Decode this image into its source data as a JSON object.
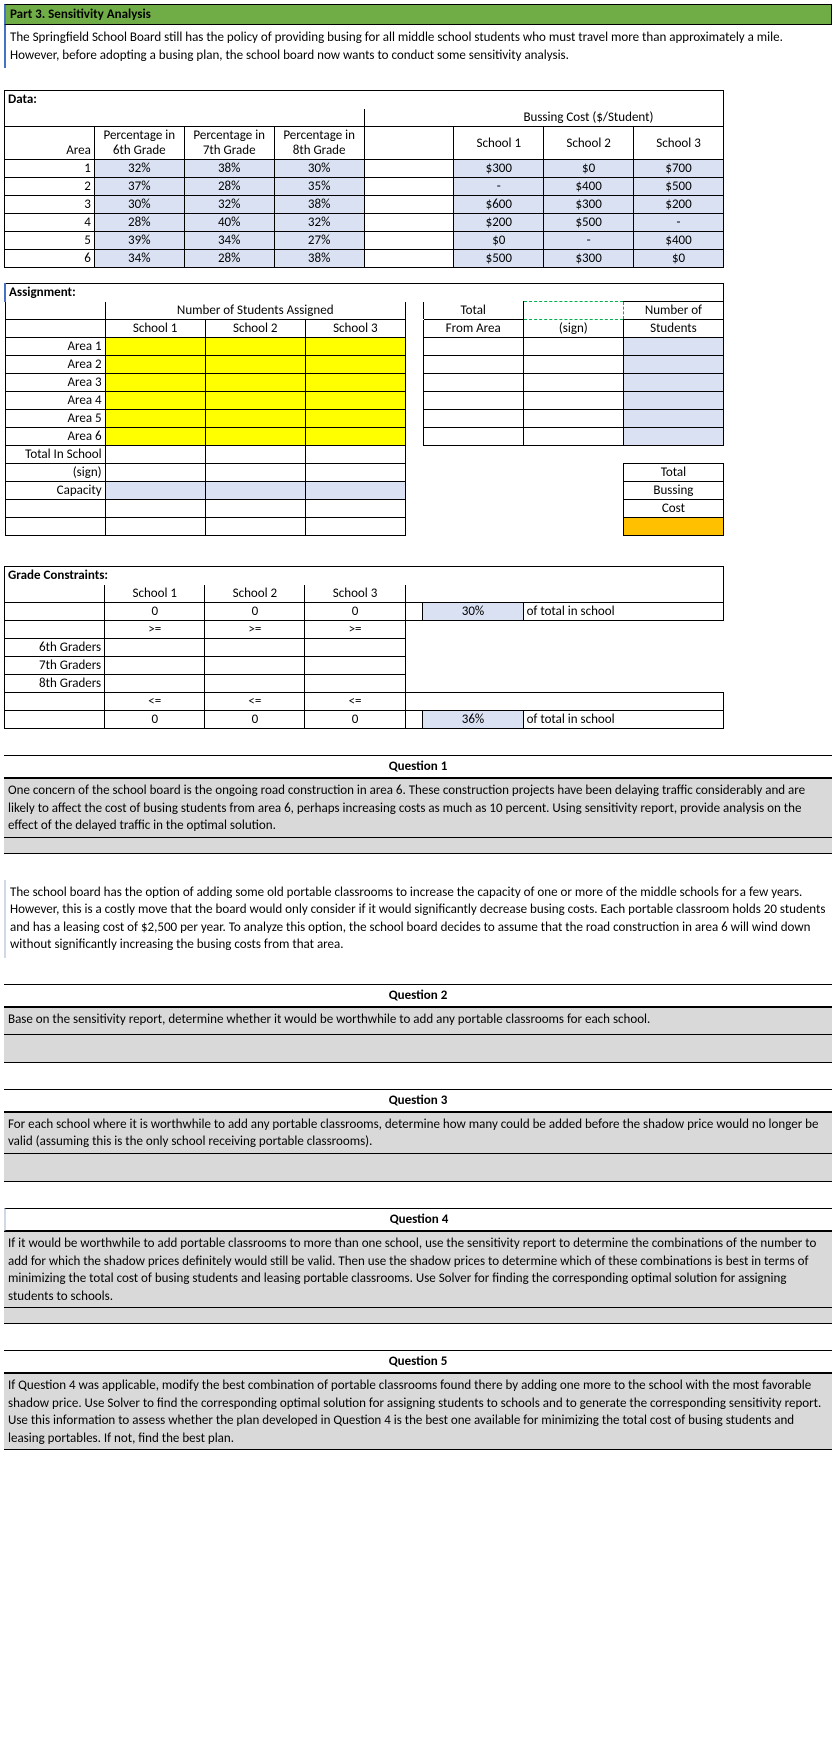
{
  "header_title": "Part 3. Sensitivity Analysis",
  "intro": "The Springfield School Board still has the policy of providing busing for all middle school students who must travel more than approximately a mile.  However, before adopting a busing plan, the school board now wants to conduct some sensitivity analysis.",
  "data_label": "Data:",
  "data_table": {
    "cost_header": "Bussing Cost ($/Student)",
    "cols": {
      "area": "Area",
      "p6": "Percentage in 6th Grade",
      "p7": "Percentage in 7th Grade",
      "p8": "Percentage in 8th Grade",
      "s1": "School 1",
      "s2": "School 2",
      "s3": "School 3"
    },
    "rows": [
      {
        "area": "1",
        "p6": "32%",
        "p7": "38%",
        "p8": "30%",
        "s1": "$300",
        "s2": "$0",
        "s3": "$700"
      },
      {
        "area": "2",
        "p6": "37%",
        "p7": "28%",
        "p8": "35%",
        "s1": "-",
        "s2": "$400",
        "s3": "$500"
      },
      {
        "area": "3",
        "p6": "30%",
        "p7": "32%",
        "p8": "38%",
        "s1": "$600",
        "s2": "$300",
        "s3": "$200"
      },
      {
        "area": "4",
        "p6": "28%",
        "p7": "40%",
        "p8": "32%",
        "s1": "$200",
        "s2": "$500",
        "s3": "-"
      },
      {
        "area": "5",
        "p6": "39%",
        "p7": "34%",
        "p8": "27%",
        "s1": "$0",
        "s2": "-",
        "s3": "$400"
      },
      {
        "area": "6",
        "p6": "34%",
        "p7": "28%",
        "p8": "38%",
        "s1": "$500",
        "s2": "$300",
        "s3": "$0"
      }
    ]
  },
  "assign": {
    "label": "Assignment:",
    "hdr_num": "Number of Students Assigned",
    "hdr_total": "Total",
    "hdr_numof": "Number of",
    "s1": "School 1",
    "s2": "School 2",
    "s3": "School 3",
    "from": "From Area",
    "sign": "(sign)",
    "students": "Students",
    "areas": [
      "Area 1",
      "Area 2",
      "Area 3",
      "Area 4",
      "Area 5",
      "Area 6"
    ],
    "tot_school": "Total In School",
    "sign2": "(sign)",
    "cap": "Capacity",
    "tot": "Total",
    "bus": "Bussing",
    "cost": "Cost"
  },
  "grade": {
    "label": "Grade Constraints:",
    "s1": "School 1",
    "s2": "School 2",
    "s3": "School 3",
    "z": "0",
    "ge": ">=",
    "le": "<=",
    "p1": "30%",
    "p2": "36%",
    "txt": "of total in school",
    "g6": "6th Graders",
    "g7": "7th Graders",
    "g8": "8th Graders"
  },
  "q1": {
    "title": "Question 1",
    "text": "One concern of the school board is the ongoing road construction in area 6. These construction projects have been delaying traffic considerably and are likely to affect the cost of busing students from area 6, perhaps increasing costs as much as 10 percent. Using sensitivity report, provide analysis on the effect of the delayed traffic in the optimal solution."
  },
  "mid_text": "The school board has the option of adding some old portable classrooms to increase the capacity of one or more of the middle schools for a few years. However, this is a costly move that the board would only consider if it would significantly decrease busing costs. Each portable classroom holds 20 students and has a leasing cost of $2,500 per year. To analyze this option, the school board decides to assume that the road construction in area 6 will wind down without significantly increasing the busing costs from that area.",
  "q2": {
    "title": "Question 2",
    "text": "Base on the sensitivity report, determine whether it would be worthwhile to add any portable classrooms for each school."
  },
  "q3": {
    "title": "Question 3",
    "text": "For each school where it is worthwhile to add any portable classrooms,  determine how many could be added before the shadow price would no longer be valid (assuming this is the only school receiving portable classrooms)."
  },
  "q4": {
    "title": "Question 4",
    "text": "If it would be worthwhile to add portable classrooms to more than one school, use the sensitivity report to determine the combinations of the number to add for which the shadow prices definitely would still be valid. Then use the shadow prices to determine which of these combinations is best in terms of minimizing the total cost of busing students and leasing portable classrooms. Use Solver for finding the corresponding optimal solution for assigning students to schools."
  },
  "q5": {
    "title": "Question 5",
    "text": " If Question 4 was applicable, modify the best combination of portable classrooms found there by adding one more to the school with the most favorable shadow price. Use Solver to find the corresponding optimal solution for assigning students to schools and to generate the corresponding sensitivity report. Use this information to assess whether the plan developed in Question 4 is the best one available for minimizing the total cost of busing students and leasing portables. If not, find the best plan."
  }
}
